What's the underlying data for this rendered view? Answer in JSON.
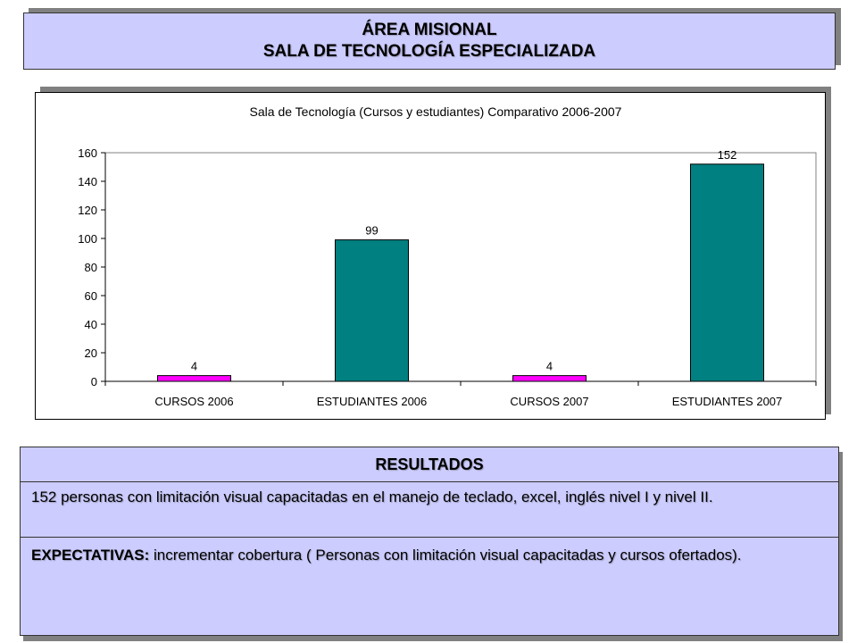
{
  "header": {
    "line1": "ÁREA MISIONAL",
    "line2": "SALA DE TECNOLOGÍA ESPECIALIZADA"
  },
  "chart_data": {
    "type": "bar",
    "title": "Sala de Tecnología (Cursos y estudiantes) Comparativo 2006-2007",
    "categories": [
      "CURSOS 2006",
      "ESTUDIANTES 2006",
      "CURSOS 2007",
      "ESTUDIANTES 2007"
    ],
    "values": [
      4,
      99,
      4,
      152
    ],
    "data_labels": [
      "4",
      "99",
      "4",
      "152"
    ],
    "bar_colors": [
      "#ff00ff",
      "#008080",
      "#ff00ff",
      "#008080"
    ],
    "ylim": [
      0,
      160
    ],
    "yticks": [
      0,
      20,
      40,
      60,
      80,
      100,
      120,
      140,
      160
    ],
    "grid": false,
    "xlabel": "",
    "ylabel": ""
  },
  "results": {
    "title": "RESULTADOS",
    "body": "152 personas con limitación visual capacitadas en el manejo de teclado, excel, inglés nivel I y nivel II.",
    "expectations_label": "EXPECTATIVAS:",
    "expectations_text": " incrementar cobertura ( Personas con limitación visual capacitadas y cursos ofertados)."
  }
}
